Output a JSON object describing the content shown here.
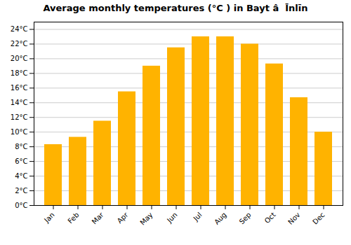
{
  "chart_data": {
    "type": "bar",
    "title": "Average monthly temperatures (°C ) in Bayt â  Īnlīn",
    "categories": [
      "Jan",
      "Feb",
      "Mar",
      "Apr",
      "May",
      "Jun",
      "Jul",
      "Aug",
      "Sep",
      "Oct",
      "Nov",
      "Dec"
    ],
    "values": [
      8.3,
      9.3,
      11.5,
      15.5,
      19.0,
      21.5,
      23.0,
      23.0,
      22.0,
      19.3,
      14.7,
      10.0
    ],
    "color": "#FFB300",
    "ylim": [
      0,
      25
    ],
    "yticks": [
      {
        "value": 0,
        "label": "0°C"
      },
      {
        "value": 2,
        "label": "2°C"
      },
      {
        "value": 4,
        "label": "4°C"
      },
      {
        "value": 6,
        "label": "6°C"
      },
      {
        "value": 8,
        "label": "8°C"
      },
      {
        "value": 10,
        "label": "10°C"
      },
      {
        "value": 12,
        "label": "12°C"
      },
      {
        "value": 14,
        "label": "14°C"
      },
      {
        "value": 16,
        "label": "16°C"
      },
      {
        "value": 18,
        "label": "18°C"
      },
      {
        "value": 20,
        "label": "20°C"
      },
      {
        "value": 22,
        "label": "22°C"
      },
      {
        "value": 24,
        "label": "24°C"
      }
    ],
    "grid": true
  }
}
